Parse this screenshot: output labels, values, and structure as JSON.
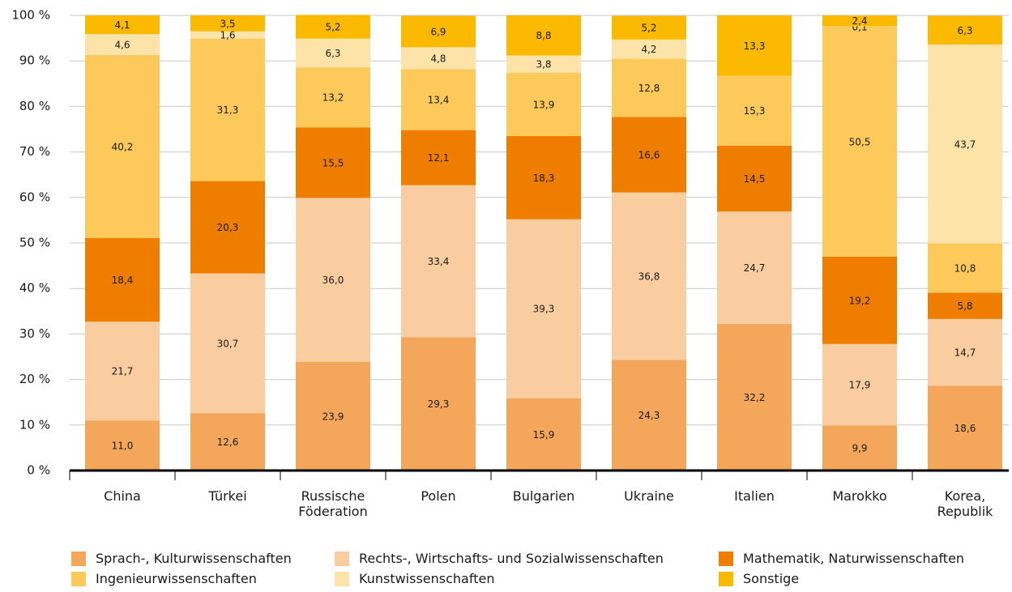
{
  "chart_data": {
    "type": "stacked_bar",
    "categories": [
      "China",
      "Türkei",
      "Russische Föderation",
      "Polen",
      "Bulgarien",
      "Ukraine",
      "Italien",
      "Marokko",
      "Korea, Republik"
    ],
    "series": [
      {
        "name": "Sprach-, Kulturwissenschaften",
        "color": "#f4a65a",
        "values": [
          11.0,
          12.6,
          23.9,
          29.3,
          15.9,
          24.3,
          32.2,
          9.9,
          18.6
        ],
        "value_labels": [
          "11,0",
          "12,6",
          "23,9",
          "29,3",
          "15,9",
          "24,3",
          "32,2",
          "9,9",
          "18,6"
        ]
      },
      {
        "name": "Rechts-, Wirtschafts- und Sozialwissenschaften",
        "color": "#f9cda0",
        "values": [
          21.7,
          30.7,
          36.0,
          33.4,
          39.3,
          36.8,
          24.7,
          17.9,
          14.7
        ],
        "value_labels": [
          "21,7",
          "30,7",
          "36,0",
          "33,4",
          "39,3",
          "36,8",
          "24,7",
          "17,9",
          "14,7"
        ]
      },
      {
        "name": "Mathematik, Naturwissenschaften",
        "color": "#ef7d00",
        "values": [
          18.4,
          20.3,
          15.5,
          12.1,
          18.3,
          16.6,
          14.5,
          19.2,
          5.8
        ],
        "value_labels": [
          "18,4",
          "20,3",
          "15,5",
          "12,1",
          "18,3",
          "16,6",
          "14,5",
          "19,2",
          "5,8"
        ]
      },
      {
        "name": "Ingenieurwissenschaften",
        "color": "#fdc95a",
        "values": [
          40.2,
          31.3,
          13.2,
          13.4,
          13.9,
          12.8,
          15.3,
          50.5,
          10.8
        ],
        "value_labels": [
          "40,2",
          "31,3",
          "13,2",
          "13,4",
          "13,9",
          "12,8",
          "15,3",
          "50,5",
          "10,8"
        ]
      },
      {
        "name": "Kunstwissenschaften",
        "color": "#fde3a8",
        "values": [
          4.6,
          1.6,
          6.3,
          4.8,
          3.8,
          4.2,
          null,
          0.1,
          43.7
        ],
        "value_labels": [
          "4,6",
          "1,6",
          "6,3",
          "4,8",
          "3,8",
          "4,2",
          null,
          "0,1",
          "43,7"
        ]
      },
      {
        "name": "Sonstige",
        "color": "#fbb900",
        "values": [
          4.1,
          3.5,
          5.2,
          6.9,
          8.8,
          5.2,
          13.3,
          2.4,
          6.3
        ],
        "value_labels": [
          "4,1",
          "3,5",
          "5,2",
          "6,9",
          "8,8",
          "5,2",
          "13,3",
          "2,4",
          "6,3"
        ]
      }
    ],
    "ylim": [
      0,
      100
    ],
    "yticks": [
      {
        "value": 0,
        "label": "0 %"
      },
      {
        "value": 10,
        "label": "10 %"
      },
      {
        "value": 20,
        "label": "20 %"
      },
      {
        "value": 30,
        "label": "30 %"
      },
      {
        "value": 40,
        "label": "40 %"
      },
      {
        "value": 50,
        "label": "50 %"
      },
      {
        "value": 60,
        "label": "60 %"
      },
      {
        "value": 70,
        "label": "70 %"
      },
      {
        "value": 80,
        "label": "80 %"
      },
      {
        "value": 90,
        "label": "90 %"
      },
      {
        "value": 100,
        "label": "100 %"
      }
    ],
    "grid": true
  }
}
